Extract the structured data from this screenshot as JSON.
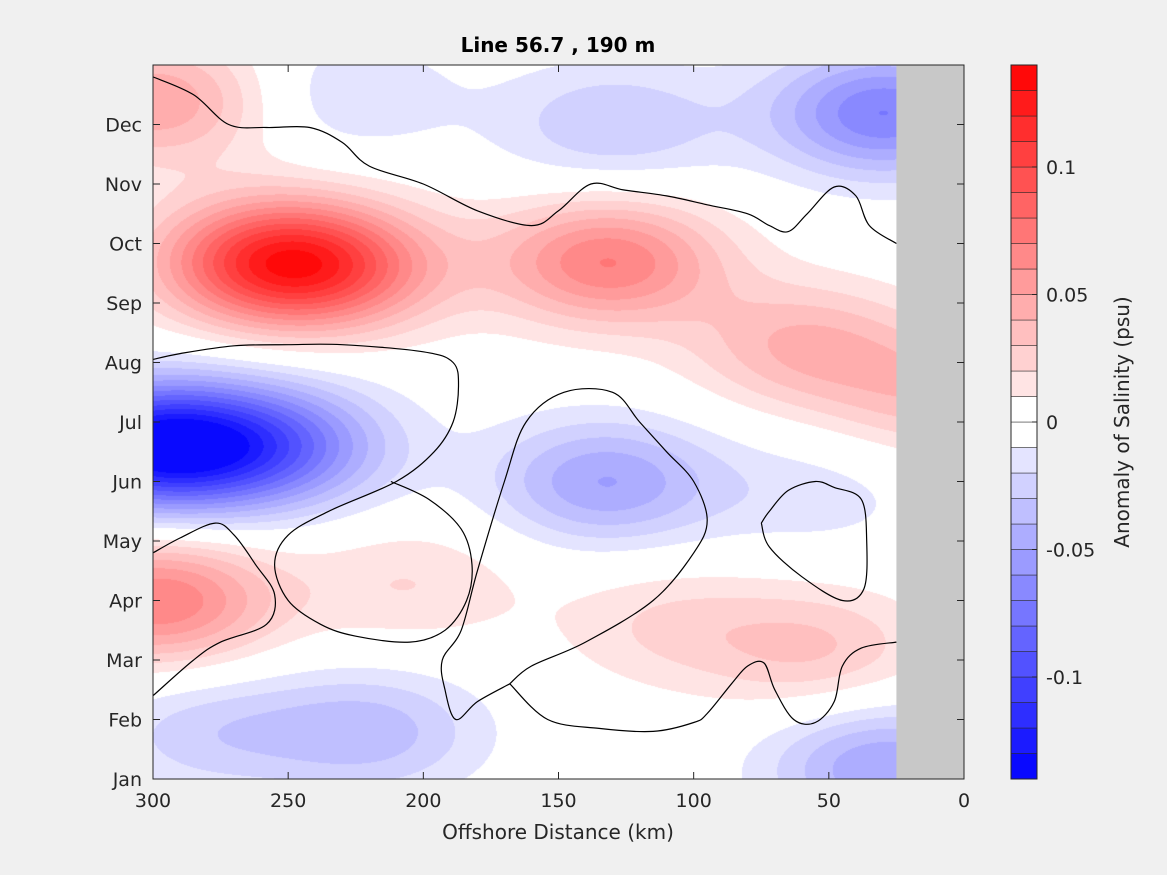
{
  "chart_data": {
    "type": "heatmap",
    "title": "Line 56.7 , 190 m",
    "xlabel": "Offshore Distance (km)",
    "ylabel": "",
    "xlim": [
      300,
      0
    ],
    "x_ticks": [
      300,
      250,
      200,
      150,
      100,
      50,
      0
    ],
    "y_ticks": [
      "Jan",
      "Feb",
      "Mar",
      "Apr",
      "May",
      "Jun",
      "Jul",
      "Aug",
      "Sep",
      "Oct",
      "Nov",
      "Dec"
    ],
    "colorbar": {
      "label": "Anomaly of Salinity (psu)",
      "range": [
        -0.14,
        0.14
      ],
      "step": 0.01,
      "ticks": [
        {
          "value": 0.1,
          "label": "0.1"
        },
        {
          "value": 0.05,
          "label": "0.05"
        },
        {
          "value": 0,
          "label": "0"
        },
        {
          "value": -0.05,
          "label": "-0.05"
        },
        {
          "value": -0.1,
          "label": "-0.1"
        }
      ],
      "colormap": "blue-white-red"
    },
    "no_data_region": {
      "x_from": 25,
      "x_to": 0,
      "color": "#c8c8c8"
    },
    "anomaly_centers": [
      {
        "x": 258,
        "month": 8.7,
        "value": 0.09
      },
      {
        "x": 232,
        "month": 8.6,
        "value": 0.06
      },
      {
        "x": 132,
        "month": 8.7,
        "value": 0.07
      },
      {
        "x": 298,
        "month": 11.4,
        "value": 0.05
      },
      {
        "x": 60,
        "month": 7.3,
        "value": 0.04
      },
      {
        "x": 298,
        "month": 3.0,
        "value": 0.07
      },
      {
        "x": 205,
        "month": 3.3,
        "value": 0.02
      },
      {
        "x": 110,
        "month": 2.6,
        "value": 0.02
      },
      {
        "x": 55,
        "month": 2.2,
        "value": 0.03
      },
      {
        "x": 10,
        "month": 6.5,
        "value": 0.035
      },
      {
        "x": 300,
        "month": 5.6,
        "value": -0.13
      },
      {
        "x": 255,
        "month": 5.6,
        "value": -0.07
      },
      {
        "x": 133,
        "month": 5.0,
        "value": -0.05
      },
      {
        "x": 55,
        "month": 4.8,
        "value": -0.015
      },
      {
        "x": 220,
        "month": 0.8,
        "value": -0.035
      },
      {
        "x": 280,
        "month": 0.8,
        "value": -0.025
      },
      {
        "x": 30,
        "month": 11.2,
        "value": -0.07
      },
      {
        "x": 130,
        "month": 11.0,
        "value": -0.03
      },
      {
        "x": 230,
        "month": 11.5,
        "value": -0.02
      },
      {
        "x": 30,
        "month": 0.2,
        "value": -0.05
      }
    ],
    "zero_contour_lines": [
      [
        [
          300,
          11.8
        ],
        [
          285,
          11.5
        ],
        [
          272,
          11.0
        ],
        [
          258,
          10.95
        ],
        [
          242,
          10.95
        ],
        [
          230,
          10.7
        ],
        [
          220,
          10.3
        ],
        [
          200,
          10.0
        ],
        [
          180,
          9.55
        ],
        [
          160,
          9.3
        ],
        [
          150,
          9.55
        ],
        [
          138,
          10.0
        ],
        [
          126,
          9.9
        ],
        [
          110,
          9.8
        ],
        [
          95,
          9.65
        ],
        [
          80,
          9.5
        ],
        [
          72,
          9.3
        ],
        [
          65,
          9.2
        ],
        [
          58,
          9.5
        ],
        [
          48,
          9.95
        ],
        [
          40,
          9.8
        ],
        [
          35,
          9.3
        ],
        [
          25,
          9.0
        ]
      ],
      [
        [
          300,
          7.05
        ],
        [
          290,
          7.15
        ],
        [
          270,
          7.28
        ],
        [
          250,
          7.3
        ],
        [
          230,
          7.3
        ],
        [
          200,
          7.18
        ],
        [
          189,
          7.0
        ],
        [
          187,
          6.6
        ],
        [
          189,
          6.0
        ],
        [
          196,
          5.5
        ],
        [
          210,
          5.0
        ],
        [
          235,
          4.5
        ],
        [
          250,
          4.1
        ],
        [
          255,
          3.6
        ],
        [
          250,
          3.0
        ],
        [
          238,
          2.6
        ],
        [
          225,
          2.4
        ],
        [
          205,
          2.3
        ],
        [
          192,
          2.5
        ],
        [
          184,
          3.0
        ],
        [
          182,
          3.6
        ],
        [
          186,
          4.2
        ],
        [
          198,
          4.7
        ],
        [
          212,
          5.0
        ]
      ],
      [
        [
          300,
          1.4
        ],
        [
          285,
          2.0
        ],
        [
          275,
          2.3
        ],
        [
          258,
          2.6
        ],
        [
          255,
          3.1
        ],
        [
          262,
          3.6
        ],
        [
          270,
          4.1
        ],
        [
          277,
          4.3
        ],
        [
          290,
          4.05
        ],
        [
          300,
          3.8
        ]
      ],
      [
        [
          168,
          1.6
        ],
        [
          154,
          1.0
        ],
        [
          135,
          0.85
        ],
        [
          115,
          0.8
        ],
        [
          100,
          0.95
        ],
        [
          95,
          1.1
        ],
        [
          86,
          1.6
        ],
        [
          80,
          1.9
        ],
        [
          74,
          1.95
        ],
        [
          70,
          1.5
        ],
        [
          63,
          1.0
        ],
        [
          55,
          0.95
        ],
        [
          48,
          1.3
        ],
        [
          45,
          1.9
        ],
        [
          38,
          2.2
        ],
        [
          25,
          2.3
        ]
      ],
      [
        [
          168,
          1.6
        ],
        [
          180,
          1.3
        ],
        [
          188,
          1.0
        ],
        [
          192,
          1.5
        ],
        [
          193,
          2.0
        ],
        [
          186,
          2.5
        ],
        [
          180,
          3.5
        ],
        [
          170,
          5.0
        ],
        [
          162,
          6.0
        ],
        [
          148,
          6.5
        ],
        [
          130,
          6.5
        ],
        [
          120,
          6.0
        ],
        [
          110,
          5.5
        ],
        [
          100,
          5.0
        ],
        [
          95,
          4.35
        ],
        [
          100,
          3.8
        ],
        [
          115,
          3.0
        ],
        [
          140,
          2.3
        ],
        [
          160,
          1.9
        ],
        [
          168,
          1.6
        ]
      ],
      [
        [
          75,
          4.3
        ],
        [
          72,
          4.5
        ],
        [
          65,
          4.85
        ],
        [
          55,
          5.0
        ],
        [
          48,
          4.9
        ],
        [
          38,
          4.7
        ],
        [
          36,
          4.0
        ],
        [
          37,
          3.2
        ],
        [
          45,
          3.0
        ],
        [
          60,
          3.4
        ],
        [
          72,
          3.9
        ],
        [
          75,
          4.3
        ]
      ]
    ]
  }
}
